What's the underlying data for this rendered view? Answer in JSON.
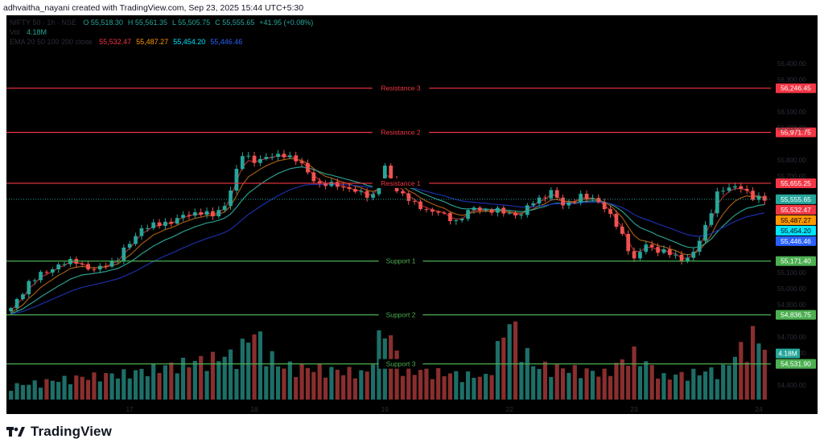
{
  "header": {
    "credit": "adhvaitha_nayani created with TradingView.com, Sep 23, 2025 15:44 UTC+5:30"
  },
  "footer": {
    "logo_text": "TradingView"
  },
  "legend": {
    "symbol_text": "NIFTY 50 · 1h · NSE",
    "ohlc": [
      {
        "label": "O",
        "value": "55,518.30"
      },
      {
        "label": "H",
        "value": "55,561.35"
      },
      {
        "label": "L",
        "value": "55,505.75"
      },
      {
        "label": "C",
        "value": "55,555.65"
      }
    ],
    "change": "+41.95 (+0.08%)",
    "volume_label": "Vol",
    "volume_value": "4.18M",
    "ma_text": "EMA 20 50 100 200 close",
    "ma_values": [
      {
        "value": "55,532.47",
        "color": "#f23645"
      },
      {
        "value": "55,487.27",
        "color": "#ff9800"
      },
      {
        "value": "55,454.20",
        "color": "#00e5ff"
      },
      {
        "value": "55,446.46",
        "color": "#2962ff"
      }
    ]
  },
  "colors": {
    "up": "#26a69a",
    "down": "#ef5350",
    "resistance": "#f23645",
    "support": "#4caf50",
    "ema20": "#b22833",
    "ema50": "#a35a12",
    "ema100": "#2a9d8f",
    "ema200": "#1a2fa8"
  },
  "chart_data": {
    "type": "candlestick",
    "title": "",
    "price_axis": {
      "range": [
        54400,
        56500
      ],
      "ticks": [
        {
          "price": 56400,
          "label": "56,400.00"
        },
        {
          "price": 56300,
          "label": "56,300.00"
        },
        {
          "price": 56100,
          "label": "56,100.00"
        },
        {
          "price": 56000,
          "label": "56,000.00"
        },
        {
          "price": 55800,
          "label": "55,800.00"
        },
        {
          "price": 55700,
          "label": "55,700.00"
        },
        {
          "price": 55100,
          "label": "55,100.00"
        },
        {
          "price": 55000,
          "label": "55,000.00"
        },
        {
          "price": 54900,
          "label": "54,900.00"
        },
        {
          "price": 54700,
          "label": "54,700.00"
        },
        {
          "price": 54600,
          "label": "54,600.00"
        },
        {
          "price": 54400,
          "label": "54,400.00"
        }
      ]
    },
    "time_axis": {
      "labels": [
        {
          "label": "17",
          "bar": 20
        },
        {
          "label": "18",
          "bar": 41
        },
        {
          "label": "19",
          "bar": 63
        },
        {
          "label": "22",
          "bar": 84
        },
        {
          "label": "23",
          "bar": 105
        },
        {
          "label": "24",
          "bar": 126
        }
      ]
    },
    "levels": [
      {
        "name": "Resistance 3",
        "price": 56246.45,
        "label": "56,246.45",
        "type": "resistance"
      },
      {
        "name": "Resistance 2",
        "price": 55971.75,
        "label": "55,971.75",
        "type": "resistance"
      },
      {
        "name": "Resistance 1",
        "price": 55655.25,
        "label": "55,655.25",
        "type": "resistance"
      },
      {
        "name": "Support 1",
        "price": 55171.4,
        "label": "55,171.40",
        "type": "support"
      },
      {
        "name": "Support 2",
        "price": 54836.75,
        "label": "54,836.75",
        "type": "support"
      },
      {
        "name": "Support 3",
        "price": 54531.9,
        "label": "54,531.90",
        "type": "support"
      }
    ],
    "last_price": {
      "price": 55555.65,
      "label": "55,555.65"
    },
    "ma_markers": [
      {
        "price": 55532.47,
        "label": "55,532.47",
        "color": "#f23645"
      },
      {
        "price": 55487.27,
        "label": "55,487.27",
        "color": "#ff9800"
      },
      {
        "price": 55454.2,
        "label": "55,454.20",
        "color": "#00e5ff"
      },
      {
        "price": 55446.46,
        "label": "55,446.46",
        "color": "#2962ff"
      }
    ],
    "volume_marker": {
      "label": "4.18M"
    },
    "keyframes": [
      [
        0,
        54870
      ],
      [
        3,
        55040
      ],
      [
        8,
        55150
      ],
      [
        11,
        55170
      ],
      [
        14,
        55110
      ],
      [
        18,
        55190
      ],
      [
        20,
        55280
      ],
      [
        22,
        55380
      ],
      [
        24,
        55390
      ],
      [
        27,
        55420
      ],
      [
        30,
        55460
      ],
      [
        32,
        55480
      ],
      [
        34,
        55450
      ],
      [
        36,
        55520
      ],
      [
        39,
        55830
      ],
      [
        41,
        55800
      ],
      [
        43,
        55810
      ],
      [
        46,
        55840
      ],
      [
        49,
        55770
      ],
      [
        52,
        55640
      ],
      [
        55,
        55650
      ],
      [
        58,
        55600
      ],
      [
        61,
        55580
      ],
      [
        63,
        55750
      ],
      [
        65,
        55620
      ],
      [
        68,
        55520
      ],
      [
        72,
        55470
      ],
      [
        75,
        55420
      ],
      [
        78,
        55500
      ],
      [
        82,
        55480
      ],
      [
        86,
        55460
      ],
      [
        88,
        55540
      ],
      [
        91,
        55600
      ],
      [
        93,
        55520
      ],
      [
        96,
        55570
      ],
      [
        99,
        55550
      ],
      [
        101,
        55450
      ],
      [
        103,
        55330
      ],
      [
        105,
        55180
      ],
      [
        107,
        55270
      ],
      [
        110,
        55230
      ],
      [
        113,
        55180
      ],
      [
        115,
        55220
      ],
      [
        117,
        55380
      ],
      [
        119,
        55600
      ],
      [
        121,
        55620
      ],
      [
        123,
        55640
      ],
      [
        125,
        55560
      ],
      [
        127,
        55555
      ]
    ],
    "bar_count": 128,
    "volume_profile": [
      [
        0,
        0.18
      ],
      [
        10,
        0.28
      ],
      [
        20,
        0.35
      ],
      [
        38,
        0.6
      ],
      [
        41,
        0.9
      ],
      [
        45,
        0.45
      ],
      [
        60,
        0.35
      ],
      [
        63,
        1.0
      ],
      [
        66,
        0.4
      ],
      [
        80,
        0.3
      ],
      [
        84,
        1.05
      ],
      [
        88,
        0.45
      ],
      [
        100,
        0.35
      ],
      [
        105,
        0.6
      ],
      [
        110,
        0.3
      ],
      [
        120,
        0.4
      ],
      [
        125,
        0.85
      ],
      [
        127,
        0.7
      ]
    ]
  }
}
